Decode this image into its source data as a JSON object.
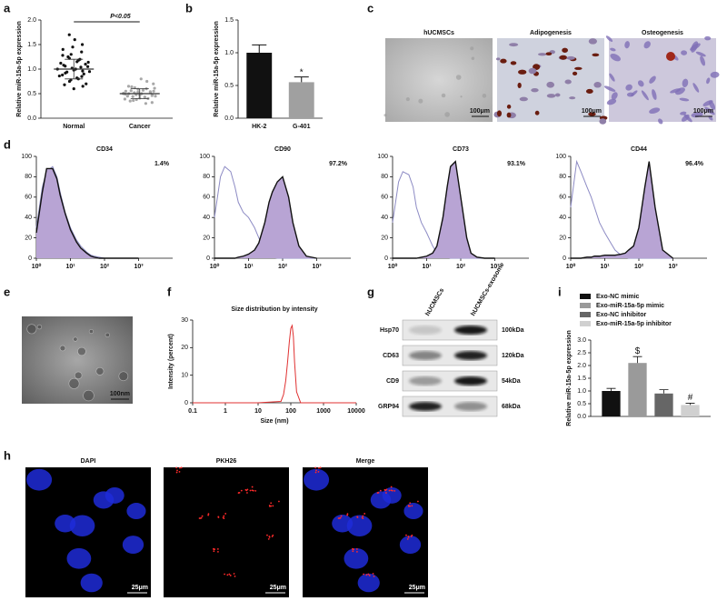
{
  "panel_labels": [
    "a",
    "b",
    "c",
    "d",
    "e",
    "f",
    "g",
    "h",
    "i"
  ],
  "chart_data": [
    {
      "type": "dot",
      "ylabel": "Relative miR-15a-5p expression",
      "categories": [
        "Normal",
        "Cancer"
      ],
      "colors": [
        "#111111",
        "#a8a8a8"
      ],
      "points": [
        [
          1.0,
          0.95,
          1.05,
          1.1,
          0.9,
          0.85,
          1.2,
          0.8,
          1.15,
          1.0,
          0.98,
          1.02,
          1.3,
          0.75,
          1.25,
          0.92,
          1.08,
          0.88,
          1.12,
          1.4,
          0.7,
          1.5,
          0.65,
          1.35,
          0.96,
          1.04,
          1.18,
          0.82,
          1.6,
          0.6,
          1.45,
          0.78,
          1.22,
          0.94,
          1.06,
          1.7,
          0.68,
          1.28,
          0.86,
          1.14
        ],
        [
          0.5,
          0.45,
          0.55,
          0.48,
          0.52,
          0.4,
          0.6,
          0.42,
          0.58,
          0.5,
          0.47,
          0.53,
          0.38,
          0.62,
          0.44,
          0.56,
          0.35,
          0.65,
          0.49,
          0.51,
          0.7,
          0.32,
          0.46,
          0.54,
          0.75,
          0.3,
          0.43,
          0.57,
          0.8,
          0.41,
          0.59,
          0.48,
          0.52,
          0.36,
          0.64,
          0.5,
          0.45,
          0.55,
          0.39,
          0.61
        ]
      ],
      "means": [
        1.0,
        0.5
      ],
      "errors": [
        0.2,
        0.1
      ],
      "annotation": "P<0.05",
      "ylim": [
        0,
        2
      ],
      "yticks": [
        {
          "value": 0,
          "label": "0.0"
        },
        {
          "value": 0.5,
          "label": "0.5"
        },
        {
          "value": 1,
          "label": "1.0"
        },
        {
          "value": 1.5,
          "label": "1.5"
        },
        {
          "value": 2,
          "label": "2.0"
        }
      ]
    },
    {
      "type": "bar",
      "ylabel": "Relative miR-15a-5p expression",
      "categories": [
        "HK-2",
        "G-401"
      ],
      "values": [
        1.0,
        0.55
      ],
      "errors": [
        0.12,
        0.08
      ],
      "colors": [
        "#111111",
        "#a0a0a0"
      ],
      "annotation": "*",
      "ylim": [
        0,
        1.5
      ],
      "yticks": [
        {
          "value": 0,
          "label": "0.0"
        },
        {
          "value": 0.5,
          "label": "0.5"
        },
        {
          "value": 1,
          "label": "1.0"
        },
        {
          "value": 1.5,
          "label": "1.5"
        }
      ]
    },
    {
      "type": "line",
      "title": "CD34",
      "annotation": "1.4%",
      "xscale": "log",
      "x": [
        1,
        1.5,
        2,
        3,
        4,
        5,
        7,
        10,
        15,
        20,
        30,
        40,
        50,
        70,
        100,
        150,
        200,
        300,
        500,
        1000
      ],
      "series": [
        {
          "color": "#8d8bc4",
          "values": [
            30,
            70,
            85,
            90,
            80,
            65,
            45,
            30,
            18,
            12,
            6,
            3,
            2,
            1,
            0,
            0,
            0,
            0,
            0,
            0
          ]
        },
        {
          "color": "#111111",
          "fill": "#b8a4d4",
          "values": [
            25,
            65,
            88,
            88,
            78,
            62,
            44,
            28,
            16,
            10,
            5,
            2,
            1,
            0,
            0,
            0,
            0,
            0,
            0,
            0
          ]
        }
      ],
      "xlim": [
        1,
        10000
      ],
      "xticks": [
        {
          "value": 1,
          "label": "10⁰"
        },
        {
          "value": 10,
          "label": "10¹"
        },
        {
          "value": 100,
          "label": "10²"
        },
        {
          "value": 1000,
          "label": "10³"
        }
      ],
      "ylim": [
        0,
        100
      ],
      "yticks": [
        0,
        20,
        40,
        60,
        80,
        100
      ]
    },
    {
      "type": "line",
      "title": "CD90",
      "annotation": "97.2%",
      "xscale": "log",
      "x": [
        1,
        1.5,
        2,
        3,
        4,
        5,
        7,
        10,
        15,
        20,
        30,
        40,
        50,
        70,
        100,
        150,
        200,
        300,
        500,
        1000
      ],
      "series": [
        {
          "color": "#8d8bc4",
          "values": [
            40,
            80,
            90,
            85,
            70,
            55,
            45,
            40,
            30,
            20,
            8,
            3,
            1,
            0,
            0,
            0,
            0,
            0,
            0,
            0
          ]
        },
        {
          "color": "#111111",
          "fill": "#b8a4d4",
          "values": [
            0,
            0,
            0,
            0,
            0,
            1,
            2,
            4,
            8,
            15,
            35,
            55,
            65,
            75,
            80,
            60,
            35,
            12,
            2,
            0
          ]
        }
      ],
      "xlim": [
        1,
        10000
      ],
      "xticks": [
        {
          "value": 1,
          "label": "10⁰"
        },
        {
          "value": 10,
          "label": "10¹"
        },
        {
          "value": 100,
          "label": "10²"
        },
        {
          "value": 1000,
          "label": "10³"
        }
      ],
      "ylim": [
        0,
        100
      ],
      "yticks": [
        0,
        20,
        40,
        60,
        80,
        100
      ]
    },
    {
      "type": "line",
      "title": "CD73",
      "annotation": "93.1%",
      "xscale": "log",
      "x": [
        1,
        1.5,
        2,
        3,
        4,
        5,
        7,
        10,
        15,
        20,
        30,
        40,
        50,
        70,
        100,
        150,
        200,
        300,
        500,
        1000
      ],
      "series": [
        {
          "color": "#8d8bc4",
          "values": [
            35,
            75,
            85,
            82,
            70,
            50,
            35,
            25,
            12,
            5,
            2,
            1,
            0,
            0,
            0,
            0,
            0,
            0,
            0,
            0
          ]
        },
        {
          "color": "#111111",
          "fill": "#b8a4d4",
          "values": [
            0,
            0,
            0,
            0,
            0,
            0,
            1,
            2,
            5,
            12,
            40,
            70,
            90,
            95,
            60,
            20,
            5,
            1,
            0,
            0
          ]
        }
      ],
      "xlim": [
        1,
        10000
      ],
      "xticks": [
        {
          "value": 1,
          "label": "10⁰"
        },
        {
          "value": 10,
          "label": "10¹"
        },
        {
          "value": 100,
          "label": "10²"
        },
        {
          "value": 1000,
          "label": "10³"
        }
      ],
      "ylim": [
        0,
        100
      ],
      "yticks": [
        0,
        20,
        40,
        60,
        80,
        100
      ]
    },
    {
      "type": "line",
      "title": "CD44",
      "annotation": "96.4%",
      "xscale": "log",
      "x": [
        1,
        1.5,
        2,
        3,
        4,
        5,
        7,
        10,
        15,
        20,
        30,
        40,
        50,
        70,
        100,
        150,
        200,
        300,
        500,
        1000
      ],
      "series": [
        {
          "color": "#8d8bc4",
          "values": [
            50,
            95,
            85,
            70,
            60,
            50,
            35,
            25,
            15,
            8,
            3,
            1,
            0,
            0,
            0,
            0,
            0,
            0,
            0,
            0
          ]
        },
        {
          "color": "#111111",
          "fill": "#b8a4d4",
          "values": [
            0,
            0,
            0,
            1,
            1,
            2,
            2,
            3,
            3,
            3,
            4,
            5,
            8,
            12,
            30,
            70,
            95,
            50,
            8,
            0
          ]
        }
      ],
      "xlim": [
        1,
        10000
      ],
      "xticks": [
        {
          "value": 1,
          "label": "10⁰"
        },
        {
          "value": 10,
          "label": "10¹"
        },
        {
          "value": 100,
          "label": "10²"
        },
        {
          "value": 1000,
          "label": "10³"
        }
      ],
      "ylim": [
        0,
        100
      ],
      "yticks": [
        0,
        20,
        40,
        60,
        80,
        100
      ]
    },
    {
      "type": "line",
      "title": "Size distribution by intensity",
      "xlabel": "Size (nm)",
      "ylabel": "Intensity (percent)",
      "xscale": "log",
      "x": [
        0.1,
        1,
        10,
        50,
        60,
        70,
        80,
        90,
        100,
        110,
        120,
        130,
        150,
        200,
        1000,
        10000
      ],
      "series": [
        {
          "color": "#e03030",
          "values": [
            0,
            0,
            0,
            0.5,
            3,
            8,
            15,
            22,
            27,
            28,
            24,
            15,
            4,
            0,
            0,
            0
          ]
        }
      ],
      "xlim": [
        0.1,
        10000
      ],
      "xticks": [
        0.1,
        1,
        10,
        100,
        1000,
        10000
      ],
      "ylim": [
        0,
        30
      ],
      "yticks": [
        0,
        10,
        20,
        30
      ]
    },
    {
      "type": "bar",
      "ylabel": "Relative miR-15a-5p expression",
      "categories": [
        null
      ],
      "series": [
        {
          "name": "Exo-NC mimic",
          "color": "#111111",
          "values": [
            1.0
          ],
          "errors": [
            0.1
          ]
        },
        {
          "name": "Exo-miR-15a-5p mimic",
          "color": "#9a9a9a",
          "values": [
            2.1
          ],
          "errors": [
            0.25
          ],
          "mark_label": "$"
        },
        {
          "name": "Exo-NC inhibitor",
          "color": "#666666",
          "values": [
            0.9
          ],
          "errors": [
            0.15
          ]
        },
        {
          "name": "Exo-miR-15a-5p inhibitor",
          "color": "#d0d0d0",
          "values": [
            0.45
          ],
          "errors": [
            0.07
          ],
          "mark_label": "#"
        }
      ],
      "ylim": [
        0,
        3
      ],
      "yticks": [
        {
          "value": 0,
          "label": "0.0"
        },
        {
          "value": 0.5,
          "label": "0.5"
        },
        {
          "value": 1,
          "label": "1.0"
        },
        {
          "value": 1.5,
          "label": "1.5"
        },
        {
          "value": 2,
          "label": "2.0"
        },
        {
          "value": 2.5,
          "label": "2.5"
        },
        {
          "value": 3,
          "label": "3.0"
        }
      ]
    }
  ],
  "micrographs_c": {
    "titles": [
      "hUCMSCs",
      "Adipogenesis",
      "Osteogenesis"
    ],
    "scale_bars": [
      "100μm",
      "100μm",
      "100μm"
    ]
  },
  "tem_e": {
    "scale_bar": "100nm"
  },
  "blot_g": {
    "columns": [
      "hUCMSCs",
      "hUCMSCs-exosome"
    ],
    "rows": [
      {
        "protein": "Hsp70",
        "size": "100kDa"
      },
      {
        "protein": "CD63",
        "size": "120kDa"
      },
      {
        "protein": "CD9",
        "size": "54kDa"
      },
      {
        "protein": "GRP94",
        "size": "68kDa"
      }
    ]
  },
  "fluorescence_h": {
    "titles": [
      "DAPI",
      "PKH26",
      "Merge"
    ],
    "scale_bars": [
      "25μm",
      "25μm",
      "25μm"
    ]
  }
}
